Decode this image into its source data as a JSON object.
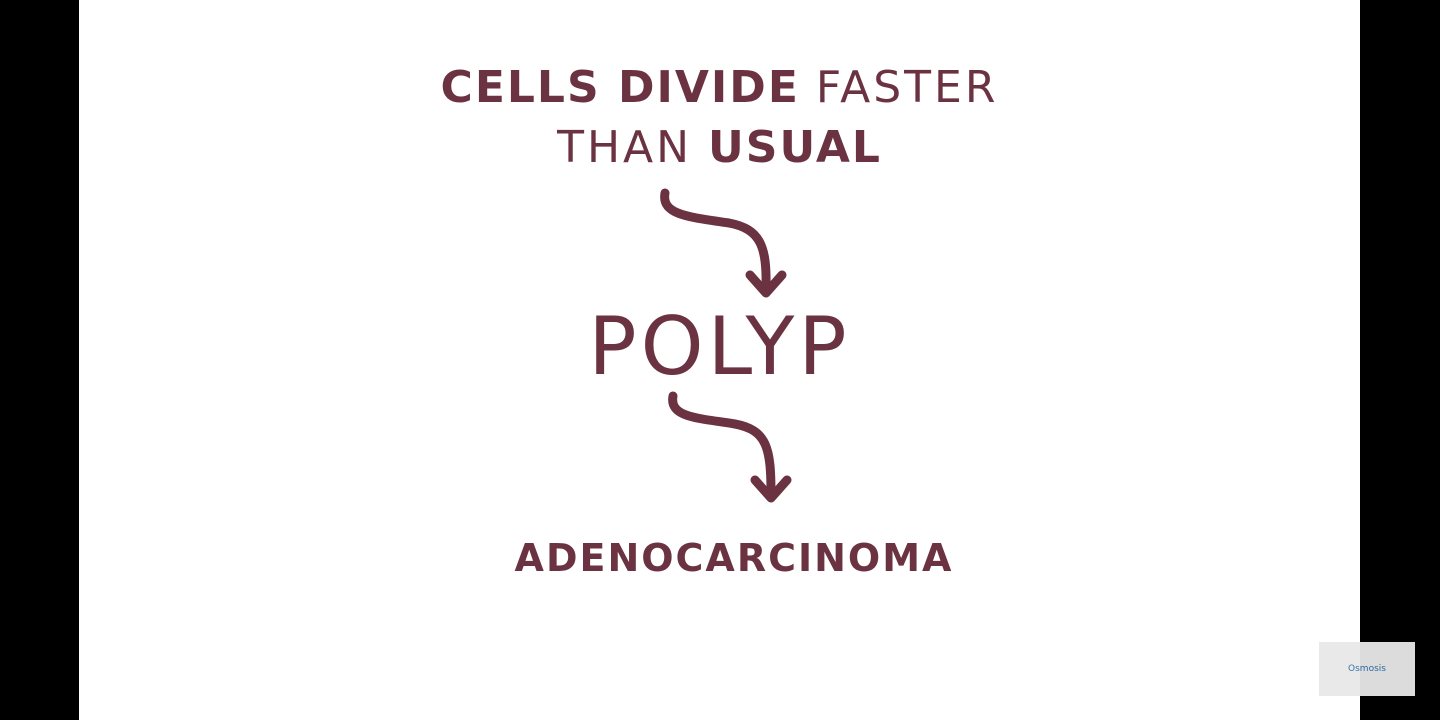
{
  "slide": {
    "line1_bold": "CELLS DIVIDE",
    "line1_thin": "FASTER",
    "line2_thin": "THAN",
    "line2_bold": "USUAL",
    "step2": "POLYP",
    "step3": "ADENOCARCINOMA"
  },
  "watermark": {
    "logo_text": "Osmosis"
  },
  "colors": {
    "ink": "#6b3342",
    "background": "#ffffff",
    "letterbox": "#000000"
  }
}
